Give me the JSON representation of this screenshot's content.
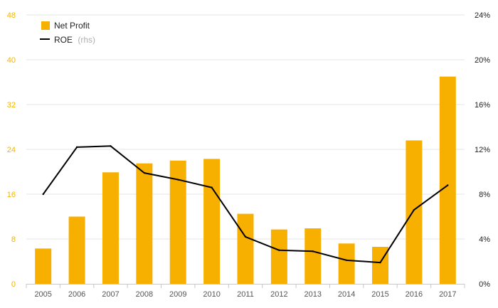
{
  "chart_data": {
    "type": "bar",
    "categories": [
      "2005",
      "2006",
      "2007",
      "2008",
      "2009",
      "2010",
      "2011",
      "2012",
      "2013",
      "2014",
      "2015",
      "2016",
      "2017"
    ],
    "series": [
      {
        "name": "Net Profit",
        "type": "bar",
        "axis": "left",
        "color": "#f7b000",
        "values": [
          6.3,
          12.0,
          19.9,
          21.5,
          22.0,
          22.3,
          12.5,
          9.7,
          9.9,
          7.2,
          6.6,
          25.6,
          37.0
        ]
      },
      {
        "name": "ROE",
        "name_suffix": "(rhs)",
        "type": "line",
        "axis": "right",
        "color": "#000000",
        "values": [
          8.0,
          12.2,
          12.3,
          9.9,
          9.3,
          8.6,
          4.2,
          3.0,
          2.9,
          2.1,
          1.9,
          6.6,
          8.8
        ]
      }
    ],
    "y_left": {
      "lim": [
        0,
        48
      ],
      "ticks": [
        "0",
        "8",
        "16",
        "24",
        "32",
        "40",
        "48"
      ],
      "color": "#f4b400"
    },
    "y_right": {
      "lim": [
        0,
        24
      ],
      "ticks": [
        "0%",
        "4%",
        "8%",
        "12%",
        "16%",
        "20%",
        "24%"
      ]
    },
    "grid": true,
    "legend": "top-left"
  }
}
